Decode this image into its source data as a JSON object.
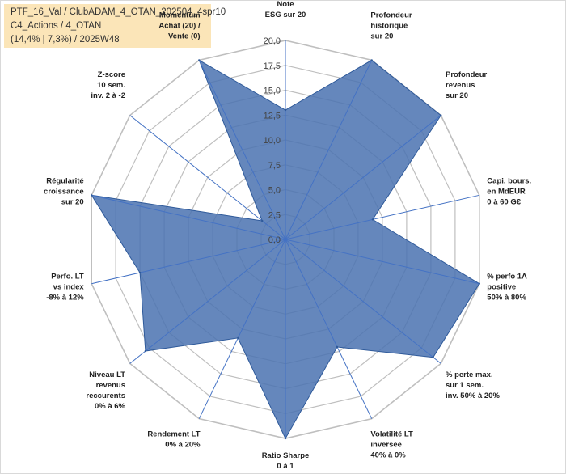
{
  "header": {
    "line1": "PTF_16_Val / ClubADAM_4_OTAN_202504_4spr10",
    "line2": "C4_Actions / 4_OTAN",
    "line3": "(14,4% | 7,3%) / 2025W48",
    "highlight_label": "Momentum"
  },
  "chart_data": {
    "type": "radar",
    "rmax": 20,
    "rticks": [
      "0,0",
      "2,5",
      "5,0",
      "7,5",
      "10,0",
      "12,5",
      "15,0",
      "17,5",
      "20,0"
    ],
    "axes": [
      [
        "Note",
        "ESG sur 20"
      ],
      [
        "Profondeur",
        "historique",
        "sur 20"
      ],
      [
        "Profondeur",
        "revenus",
        "sur 20"
      ],
      [
        "Capi. bours.",
        "en MdEUR",
        "0 à 60 G€"
      ],
      [
        "% perfo 1A",
        "positive",
        "50% à 80%"
      ],
      [
        "% perte max.",
        "sur 1 sem.",
        "inv. 50% à 20%"
      ],
      [
        "Volatilité LT",
        "inversée",
        "40% à 0%"
      ],
      [
        "Ratio Sharpe",
        "0 à 1"
      ],
      [
        "Rendement LT",
        "0% à 20%"
      ],
      [
        "Niveau LT",
        "revenus",
        "reccurents",
        "0% à 6%"
      ],
      [
        "Perfo. LT",
        "vs index",
        "-8% à 12%"
      ],
      [
        "Régularité",
        "croissance",
        "sur 20"
      ],
      [
        "Z-score",
        "10 sem.",
        "inv. 2 à -2"
      ],
      [
        "Momentum",
        "Achat (20) /",
        "Vente (0)"
      ]
    ],
    "values": [
      13,
      20,
      20,
      9,
      20,
      19,
      12,
      20,
      11,
      18,
      15,
      20,
      3,
      20
    ],
    "colors": {
      "fill": "#4a72b0",
      "stroke": "#2f5a9a",
      "grid": "#bfbfbf",
      "axis": "#4472c4"
    }
  }
}
